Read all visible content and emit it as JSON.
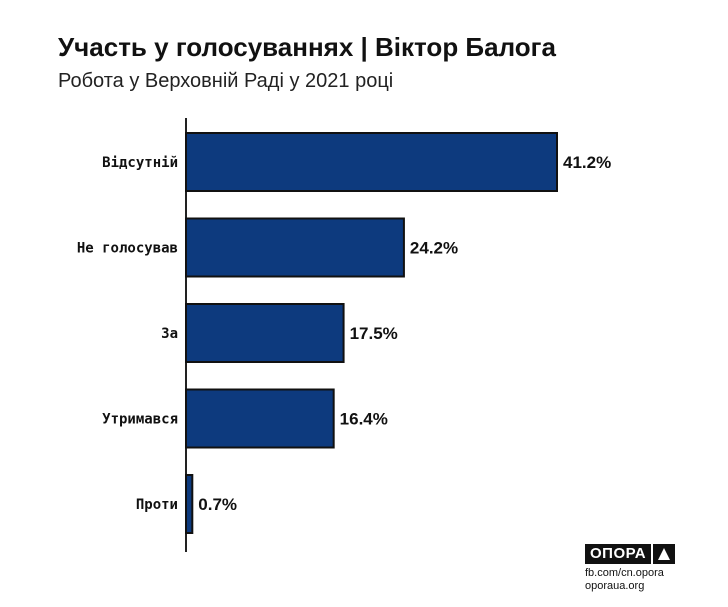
{
  "title": "Участь у голосуваннях | Віктор Балога",
  "subtitle": "Робота у Верховній Раді у 2021 році",
  "chart_data": {
    "type": "bar",
    "orientation": "horizontal",
    "categories": [
      "Відсутній",
      "Не голосував",
      "За",
      "Утримався",
      "Проти"
    ],
    "values": [
      41.2,
      24.2,
      17.5,
      16.4,
      0.7
    ],
    "value_labels": [
      "41.2%",
      "24.2%",
      "17.5%",
      "16.4%",
      "0.7%"
    ],
    "unit": "%",
    "xlim": [
      0,
      41.2
    ],
    "grid": false,
    "bar_color": "#0d3a7e",
    "bar_edge_color": "#111111"
  },
  "footer": {
    "brand": "ОПОРА",
    "facebook": "fb.com/cn.opora",
    "website": "oporaua.org"
  }
}
